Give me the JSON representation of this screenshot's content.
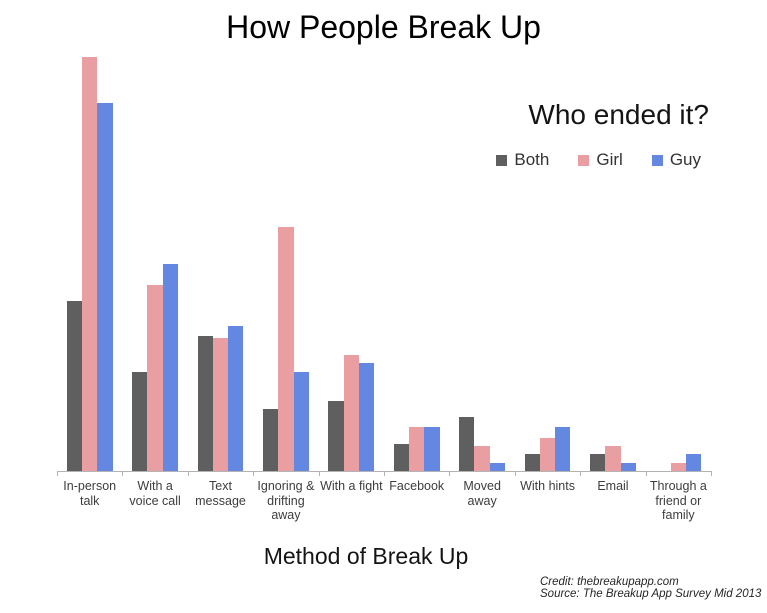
{
  "title": "How People Break Up",
  "legend": {
    "title": "Who ended it?",
    "items": [
      {
        "label": "Both",
        "color": "#5f5f5f"
      },
      {
        "label": "Girl",
        "color": "#e99fa1"
      },
      {
        "label": "Guy",
        "color": "#6488e1"
      }
    ]
  },
  "x_axis_title": "Method of Break Up",
  "credits": {
    "line1": "Credit: thebreakupapp.com",
    "line2": "Source: The Breakup App Survey Mid 2013"
  },
  "chart_data": {
    "type": "bar",
    "title": "How People Break Up",
    "xlabel": "Method of Break Up",
    "ylabel": "",
    "ylim": [
      0,
      50
    ],
    "grid": false,
    "legend_position": "top-right",
    "legend_title": "Who ended it?",
    "axis_color": "#b3b3b3",
    "categories": [
      "In-person talk",
      "With a voice call",
      "Text message",
      "Ignoring & drifting away",
      "With a fight",
      "Facebook",
      "Moved away",
      "With hints",
      "Email",
      "Through a friend or family"
    ],
    "categories_display": [
      "In-person\ntalk",
      "With a\nvoice call",
      "Text\nmessage",
      "Ignoring &\ndrifting\naway",
      "With a fight",
      "Facebook",
      "Moved\naway",
      "With hints",
      "Email",
      "Through a\nfriend or\nfamily"
    ],
    "series": [
      {
        "name": "Both",
        "color": "#5f5f5f",
        "values": [
          20.5,
          12,
          16.3,
          7.5,
          8.5,
          3.3,
          6.5,
          2,
          2,
          0
        ]
      },
      {
        "name": "Girl",
        "color": "#e99fa1",
        "values": [
          50,
          22.5,
          16.1,
          29.5,
          14,
          5.3,
          3,
          4,
          3,
          1
        ]
      },
      {
        "name": "Guy",
        "color": "#6488e1",
        "values": [
          44.5,
          25,
          17.5,
          12,
          13,
          5.3,
          1,
          5.3,
          1,
          2
        ]
      }
    ]
  }
}
